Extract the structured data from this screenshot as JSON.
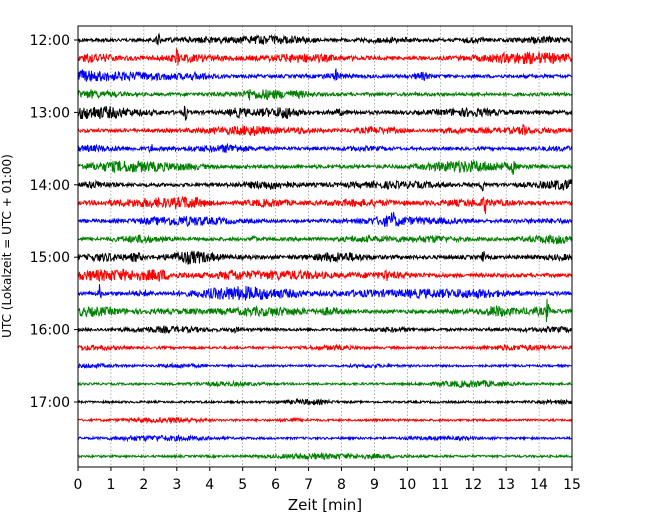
{
  "chart_data": {
    "type": "line",
    "title": "",
    "xlabel": "Zeit  [min]",
    "ylabel": "UTC (Lokalzeit = UTC + 01:00)",
    "xlim": [
      0,
      15
    ],
    "x_ticks": [
      "0",
      "1",
      "2",
      "3",
      "4",
      "5",
      "6",
      "7",
      "8",
      "9",
      "10",
      "11",
      "12",
      "13",
      "14",
      "15"
    ],
    "y_tick_labels": [
      "12:00",
      "13:00",
      "14:00",
      "15:00",
      "16:00",
      "17:00"
    ],
    "grid": true,
    "trace_colors": [
      "#000000",
      "#ff0000",
      "#0000ff",
      "#008000"
    ],
    "traces": [
      {
        "time": "12:00",
        "color": "#000000",
        "activity": 0.45
      },
      {
        "time": "12:15",
        "color": "#ff0000",
        "activity": 0.55
      },
      {
        "time": "12:30",
        "color": "#0000ff",
        "activity": 0.5
      },
      {
        "time": "12:45",
        "color": "#008000",
        "activity": 0.45
      },
      {
        "time": "13:00",
        "color": "#000000",
        "activity": 0.6
      },
      {
        "time": "13:15",
        "color": "#ff0000",
        "activity": 0.5
      },
      {
        "time": "13:30",
        "color": "#0000ff",
        "activity": 0.4
      },
      {
        "time": "13:45",
        "color": "#008000",
        "activity": 0.55
      },
      {
        "time": "14:00",
        "color": "#000000",
        "activity": 0.55
      },
      {
        "time": "14:15",
        "color": "#ff0000",
        "activity": 0.55
      },
      {
        "time": "14:30",
        "color": "#0000ff",
        "activity": 0.45
      },
      {
        "time": "14:45",
        "color": "#008000",
        "activity": 0.5
      },
      {
        "time": "15:00",
        "color": "#000000",
        "activity": 0.65
      },
      {
        "time": "15:15",
        "color": "#ff0000",
        "activity": 0.6
      },
      {
        "time": "15:30",
        "color": "#0000ff",
        "activity": 0.65
      },
      {
        "time": "15:45",
        "color": "#008000",
        "activity": 0.6
      },
      {
        "time": "16:00",
        "color": "#000000",
        "activity": 0.3
      },
      {
        "time": "16:15",
        "color": "#ff0000",
        "activity": 0.2
      },
      {
        "time": "16:30",
        "color": "#0000ff",
        "activity": 0.1
      },
      {
        "time": "16:45",
        "color": "#008000",
        "activity": 0.1
      },
      {
        "time": "17:00",
        "color": "#000000",
        "activity": 0.1
      },
      {
        "time": "17:15",
        "color": "#ff0000",
        "activity": 0.1
      },
      {
        "time": "17:30",
        "color": "#0000ff",
        "activity": 0.1
      },
      {
        "time": "17:45",
        "color": "#008000",
        "activity": 0.1
      }
    ]
  }
}
